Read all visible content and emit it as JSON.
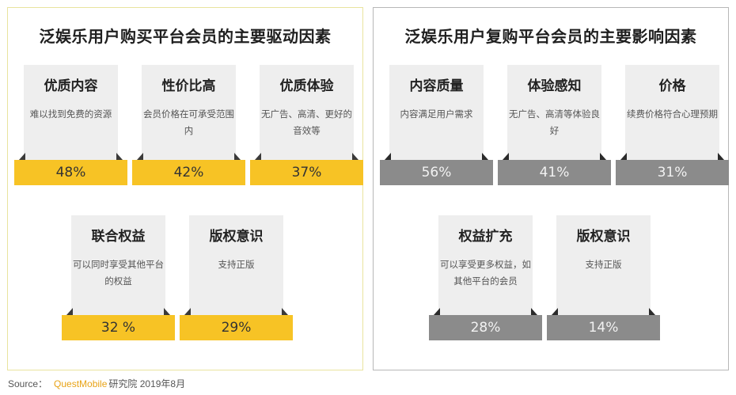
{
  "chart_data": [
    {
      "type": "table",
      "title": "泛娱乐用户购买平台会员的主要驱动因素",
      "colors": {
        "bar": "#f7c325",
        "card": "#eeeeee",
        "border": "#e9e39e"
      },
      "items": [
        {
          "name": "优质内容",
          "desc": "难以找到免费的资源",
          "value_label": "48%",
          "value": 48
        },
        {
          "name": "性价比高",
          "desc": "会员价格在可承受范围内",
          "value_label": "42%",
          "value": 42
        },
        {
          "name": "优质体验",
          "desc": "无广告、高清、更好的音效等",
          "value_label": "37%",
          "value": 37
        },
        {
          "name": "联合权益",
          "desc": "可以同时享受其他平台的权益",
          "value_label": "32 %",
          "value": 32
        },
        {
          "name": "版权意识",
          "desc": "支持正版",
          "value_label": "29%",
          "value": 29
        }
      ]
    },
    {
      "type": "table",
      "title": "泛娱乐用户复购平台会员的主要影响因素",
      "colors": {
        "bar": "#8b8b8b",
        "card": "#eeeeee",
        "border": "#b8b8b8"
      },
      "items": [
        {
          "name": "内容质量",
          "desc": "内容满足用户需求",
          "value_label": "56%",
          "value": 56
        },
        {
          "name": "体验感知",
          "desc": "无广告、高清等体验良好",
          "value_label": "41%",
          "value": 41
        },
        {
          "name": "价格",
          "desc": "续费价格符合心理预期",
          "value_label": "31%",
          "value": 31
        },
        {
          "name": "权益扩充",
          "desc": "可以享受更多权益，如其他平台的会员",
          "value_label": "28%",
          "value": 28
        },
        {
          "name": "版权意识",
          "desc": "支持正版",
          "value_label": "14%",
          "value": 14
        }
      ]
    }
  ],
  "source": {
    "label": "Source：",
    "brand": "QuestMobile",
    "text": "研究院 2019年8月"
  }
}
